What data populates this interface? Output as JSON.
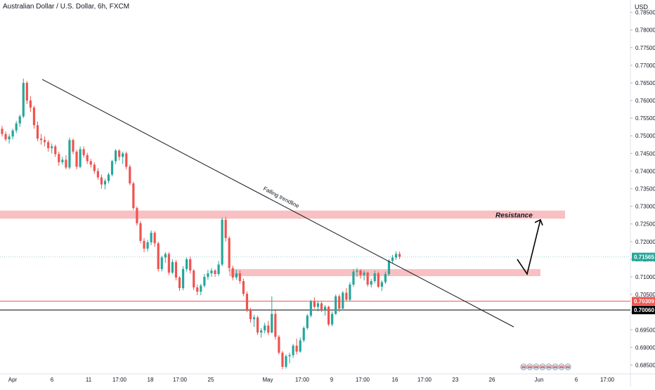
{
  "chart_data": {
    "type": "candlestick",
    "title": "Australian Dollar / U.S. Dollar, 6h, FXCM",
    "currency": "USD",
    "y_ticks": [
      "0.78500",
      "0.78000",
      "0.77500",
      "0.77000",
      "0.76500",
      "0.76000",
      "0.75500",
      "0.75000",
      "0.74500",
      "0.74000",
      "0.73500",
      "0.73000",
      "0.72500",
      "0.72000",
      "0.71500",
      "0.71000",
      "0.70500",
      "0.70000",
      "0.69500",
      "0.69000",
      "0.68500"
    ],
    "x_ticks": [
      "Apr",
      "6",
      "11",
      "17:00",
      "18",
      "17:00",
      "25",
      "May",
      "17:00",
      "9",
      "17:00",
      "16",
      "17:00",
      "23",
      "26",
      "Jun",
      "6",
      "17:00"
    ],
    "ylim": [
      0.6825,
      0.7885
    ],
    "up_color": "#26a69a",
    "down_color": "#ef5350",
    "price_labels": [
      {
        "text": "0.71565",
        "value": 0.71565,
        "color": "#26a69a"
      },
      {
        "text": "0.70309",
        "value": 0.70309,
        "color": "#ef5350"
      },
      {
        "text": "0.70060",
        "value": 0.7006,
        "color": "#000000"
      }
    ],
    "horizontal_lines": [
      {
        "value": 0.70309,
        "color": "#ef5350"
      },
      {
        "value": 0.7006,
        "color": "#000000"
      },
      {
        "value": 0.71565,
        "color": "#9fd4cf",
        "style": "dotted"
      }
    ],
    "zones": [
      {
        "label": "Resistance",
        "y_from": 0.7265,
        "y_to": 0.7288,
        "color": "#f8c0c2"
      },
      {
        "label": "",
        "y_from": 0.7102,
        "y_to": 0.7122,
        "color": "#f8c0c2"
      }
    ],
    "trendline": {
      "label": "Falling trendline",
      "from": {
        "candle": 0,
        "value": 0.766
      },
      "to": {
        "candle": 99,
        "value": 0.6958
      }
    },
    "projection": [
      0.715,
      0.7108,
      0.7262
    ],
    "candles": [
      [
        0.752,
        0.7528,
        0.7498,
        0.7505
      ],
      [
        0.7505,
        0.7512,
        0.7485,
        0.749
      ],
      [
        0.749,
        0.7505,
        0.7478,
        0.7498
      ],
      [
        0.7498,
        0.752,
        0.749,
        0.7515
      ],
      [
        0.7515,
        0.7542,
        0.7508,
        0.7535
      ],
      [
        0.7535,
        0.756,
        0.7525,
        0.7555
      ],
      [
        0.7555,
        0.7662,
        0.755,
        0.765
      ],
      [
        0.765,
        0.7655,
        0.759,
        0.76
      ],
      [
        0.76,
        0.7612,
        0.7568,
        0.758
      ],
      [
        0.758,
        0.7585,
        0.752,
        0.753
      ],
      [
        0.753,
        0.754,
        0.7485,
        0.7492
      ],
      [
        0.7492,
        0.7505,
        0.7475,
        0.7488
      ],
      [
        0.7488,
        0.7498,
        0.747,
        0.7482
      ],
      [
        0.7482,
        0.7488,
        0.7455,
        0.7465
      ],
      [
        0.7465,
        0.7478,
        0.745,
        0.747
      ],
      [
        0.747,
        0.7475,
        0.744,
        0.7448
      ],
      [
        0.7448,
        0.7455,
        0.7415,
        0.7425
      ],
      [
        0.7425,
        0.744,
        0.7418,
        0.7432
      ],
      [
        0.7432,
        0.7445,
        0.7405,
        0.741
      ],
      [
        0.741,
        0.7495,
        0.7405,
        0.7488
      ],
      [
        0.7488,
        0.7492,
        0.7448,
        0.7455
      ],
      [
        0.7455,
        0.746,
        0.7405,
        0.7412
      ],
      [
        0.7412,
        0.747,
        0.7408,
        0.7462
      ],
      [
        0.7462,
        0.747,
        0.7438,
        0.7445
      ],
      [
        0.7445,
        0.7452,
        0.742,
        0.7428
      ],
      [
        0.7428,
        0.7435,
        0.741,
        0.7418
      ],
      [
        0.7418,
        0.7425,
        0.7392,
        0.74
      ],
      [
        0.74,
        0.7408,
        0.7375,
        0.7382
      ],
      [
        0.7382,
        0.739,
        0.735,
        0.7362
      ],
      [
        0.7362,
        0.7378,
        0.7348,
        0.7372
      ],
      [
        0.7372,
        0.7395,
        0.7365,
        0.739
      ],
      [
        0.739,
        0.7432,
        0.7385,
        0.7428
      ],
      [
        0.7428,
        0.7462,
        0.742,
        0.7458
      ],
      [
        0.7458,
        0.7462,
        0.743,
        0.744
      ],
      [
        0.744,
        0.7455,
        0.742,
        0.745
      ],
      [
        0.745,
        0.7455,
        0.7405,
        0.7412
      ],
      [
        0.7412,
        0.7418,
        0.736,
        0.7365
      ],
      [
        0.7365,
        0.737,
        0.729,
        0.7295
      ],
      [
        0.7295,
        0.73,
        0.7245,
        0.7252
      ],
      [
        0.7252,
        0.7258,
        0.7195,
        0.7202
      ],
      [
        0.7202,
        0.721,
        0.717,
        0.718
      ],
      [
        0.718,
        0.7205,
        0.7172,
        0.7198
      ],
      [
        0.7198,
        0.7232,
        0.719,
        0.7225
      ],
      [
        0.7225,
        0.723,
        0.7185,
        0.7195
      ],
      [
        0.7195,
        0.72,
        0.7115,
        0.7122
      ],
      [
        0.7122,
        0.716,
        0.7115,
        0.7155
      ],
      [
        0.7155,
        0.717,
        0.714,
        0.7165
      ],
      [
        0.7165,
        0.717,
        0.7105,
        0.7112
      ],
      [
        0.7112,
        0.715,
        0.7108,
        0.7142
      ],
      [
        0.7142,
        0.7148,
        0.709,
        0.7098
      ],
      [
        0.7098,
        0.7102,
        0.706,
        0.7068
      ],
      [
        0.7068,
        0.713,
        0.7062,
        0.7122
      ],
      [
        0.7122,
        0.7155,
        0.7115,
        0.715
      ],
      [
        0.715,
        0.7158,
        0.711,
        0.7118
      ],
      [
        0.7118,
        0.7122,
        0.7062,
        0.707
      ],
      [
        0.707,
        0.7078,
        0.7048,
        0.7058
      ],
      [
        0.7058,
        0.708,
        0.7048,
        0.7075
      ],
      [
        0.7075,
        0.7108,
        0.707,
        0.71
      ],
      [
        0.71,
        0.712,
        0.7092,
        0.711
      ],
      [
        0.711,
        0.7125,
        0.71,
        0.7118
      ],
      [
        0.7118,
        0.7122,
        0.71,
        0.7108
      ],
      [
        0.7108,
        0.7145,
        0.7102,
        0.7135
      ],
      [
        0.7135,
        0.7268,
        0.713,
        0.7262
      ],
      [
        0.7262,
        0.727,
        0.72,
        0.721
      ],
      [
        0.721,
        0.7215,
        0.7115,
        0.7125
      ],
      [
        0.7125,
        0.7132,
        0.709,
        0.7098
      ],
      [
        0.7098,
        0.712,
        0.7092,
        0.711
      ],
      [
        0.711,
        0.7118,
        0.708,
        0.7088
      ],
      [
        0.7088,
        0.7095,
        0.7045,
        0.7052
      ],
      [
        0.7052,
        0.7058,
        0.7,
        0.7008
      ],
      [
        0.7008,
        0.7012,
        0.697,
        0.698
      ],
      [
        0.698,
        0.6992,
        0.6958,
        0.6985
      ],
      [
        0.6985,
        0.699,
        0.6935,
        0.6942
      ],
      [
        0.6942,
        0.6955,
        0.6928,
        0.6948
      ],
      [
        0.6948,
        0.697,
        0.694,
        0.6962
      ],
      [
        0.6962,
        0.6975,
        0.6935,
        0.6942
      ],
      [
        0.6942,
        0.7045,
        0.694,
        0.6995
      ],
      [
        0.6995,
        0.7005,
        0.6922,
        0.693
      ],
      [
        0.693,
        0.6935,
        0.688,
        0.6885
      ],
      [
        0.6885,
        0.689,
        0.6838,
        0.6845
      ],
      [
        0.6845,
        0.688,
        0.684,
        0.6875
      ],
      [
        0.6875,
        0.6885,
        0.6855,
        0.6878
      ],
      [
        0.6878,
        0.691,
        0.687,
        0.6905
      ],
      [
        0.6905,
        0.6925,
        0.688,
        0.6888
      ],
      [
        0.6888,
        0.6928,
        0.6885,
        0.692
      ],
      [
        0.692,
        0.696,
        0.6915,
        0.6955
      ],
      [
        0.6955,
        0.6995,
        0.695,
        0.699
      ],
      [
        0.699,
        0.7035,
        0.6985,
        0.703
      ],
      [
        0.703,
        0.7042,
        0.701,
        0.7015
      ],
      [
        0.7015,
        0.703,
        0.7002,
        0.7025
      ],
      [
        0.7025,
        0.703,
        0.7,
        0.7008
      ],
      [
        0.7008,
        0.702,
        0.699,
        0.7015
      ],
      [
        0.7015,
        0.7018,
        0.696,
        0.6965
      ],
      [
        0.6965,
        0.7002,
        0.696,
        0.6995
      ],
      [
        0.6995,
        0.705,
        0.6992,
        0.7045
      ],
      [
        0.7045,
        0.705,
        0.7,
        0.701
      ],
      [
        0.701,
        0.706,
        0.7005,
        0.7055
      ],
      [
        0.7055,
        0.7068,
        0.703,
        0.7035
      ],
      [
        0.7035,
        0.7085,
        0.703,
        0.7078
      ],
      [
        0.7078,
        0.7122,
        0.7072,
        0.7115
      ],
      [
        0.7115,
        0.7125,
        0.71,
        0.7118
      ],
      [
        0.7118,
        0.7122,
        0.7095,
        0.7105
      ],
      [
        0.7105,
        0.7118,
        0.709,
        0.7112
      ],
      [
        0.7112,
        0.7115,
        0.7072,
        0.7078
      ],
      [
        0.7078,
        0.7095,
        0.707,
        0.7088
      ],
      [
        0.7088,
        0.7118,
        0.7082,
        0.711
      ],
      [
        0.711,
        0.7115,
        0.7068,
        0.7072
      ],
      [
        0.7072,
        0.709,
        0.706,
        0.7085
      ],
      [
        0.7085,
        0.7115,
        0.708,
        0.7108
      ],
      [
        0.7108,
        0.715,
        0.7102,
        0.7145
      ],
      [
        0.7145,
        0.7162,
        0.7138,
        0.7155
      ],
      [
        0.7155,
        0.7172,
        0.7148,
        0.7165
      ],
      [
        0.7165,
        0.7172,
        0.715,
        0.7157
      ]
    ]
  }
}
